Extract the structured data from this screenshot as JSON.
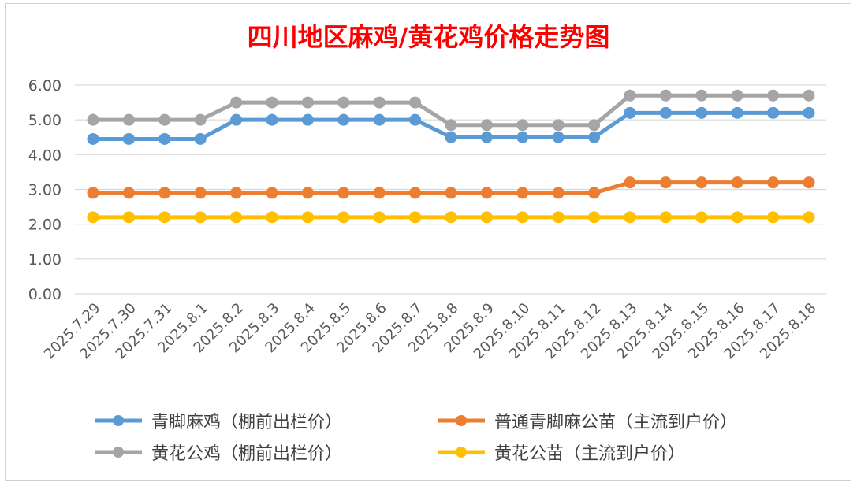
{
  "chart_data": {
    "type": "line",
    "title": "四川地区麻鸡/黄花鸡价格走势图",
    "xlabel": "",
    "ylabel": "",
    "ylim": [
      0,
      6
    ],
    "yticks": [
      "0.00",
      "1.00",
      "2.00",
      "3.00",
      "4.00",
      "5.00",
      "6.00"
    ],
    "grid": true,
    "legend_position": "bottom",
    "categories": [
      "2025.7.29",
      "2025.7.30",
      "2025.7.31",
      "2025.8.1",
      "2025.8.2",
      "2025.8.3",
      "2025.8.4",
      "2025.8.5",
      "2025.8.6",
      "2025.8.7",
      "2025.8.8",
      "2025.8.9",
      "2025.8.10",
      "2025.8.11",
      "2025.8.12",
      "2025.8.13",
      "2025.8.14",
      "2025.8.15",
      "2025.8.16",
      "2025.8.17",
      "2025.8.18"
    ],
    "series": [
      {
        "name": "青脚麻鸡（棚前出栏价）",
        "color": "#5B9BD5",
        "values": [
          4.45,
          4.45,
          4.45,
          4.45,
          5.0,
          5.0,
          5.0,
          5.0,
          5.0,
          5.0,
          4.5,
          4.5,
          4.5,
          4.5,
          4.5,
          5.2,
          5.2,
          5.2,
          5.2,
          5.2,
          5.2
        ]
      },
      {
        "name": "普通青脚麻公苗（主流到户价）",
        "color": "#ED7D31",
        "values": [
          2.9,
          2.9,
          2.9,
          2.9,
          2.9,
          2.9,
          2.9,
          2.9,
          2.9,
          2.9,
          2.9,
          2.9,
          2.9,
          2.9,
          2.9,
          3.2,
          3.2,
          3.2,
          3.2,
          3.2,
          3.2
        ]
      },
      {
        "name": "黄花公鸡（棚前出栏价）",
        "color": "#A5A5A5",
        "values": [
          5.0,
          5.0,
          5.0,
          5.0,
          5.5,
          5.5,
          5.5,
          5.5,
          5.5,
          5.5,
          4.85,
          4.85,
          4.85,
          4.85,
          4.85,
          5.7,
          5.7,
          5.7,
          5.7,
          5.7,
          5.7
        ]
      },
      {
        "name": "黄花公苗（主流到户价）",
        "color": "#FFC000",
        "values": [
          2.2,
          2.2,
          2.2,
          2.2,
          2.2,
          2.2,
          2.2,
          2.2,
          2.2,
          2.2,
          2.2,
          2.2,
          2.2,
          2.2,
          2.2,
          2.2,
          2.2,
          2.2,
          2.2,
          2.2,
          2.2
        ]
      }
    ]
  }
}
